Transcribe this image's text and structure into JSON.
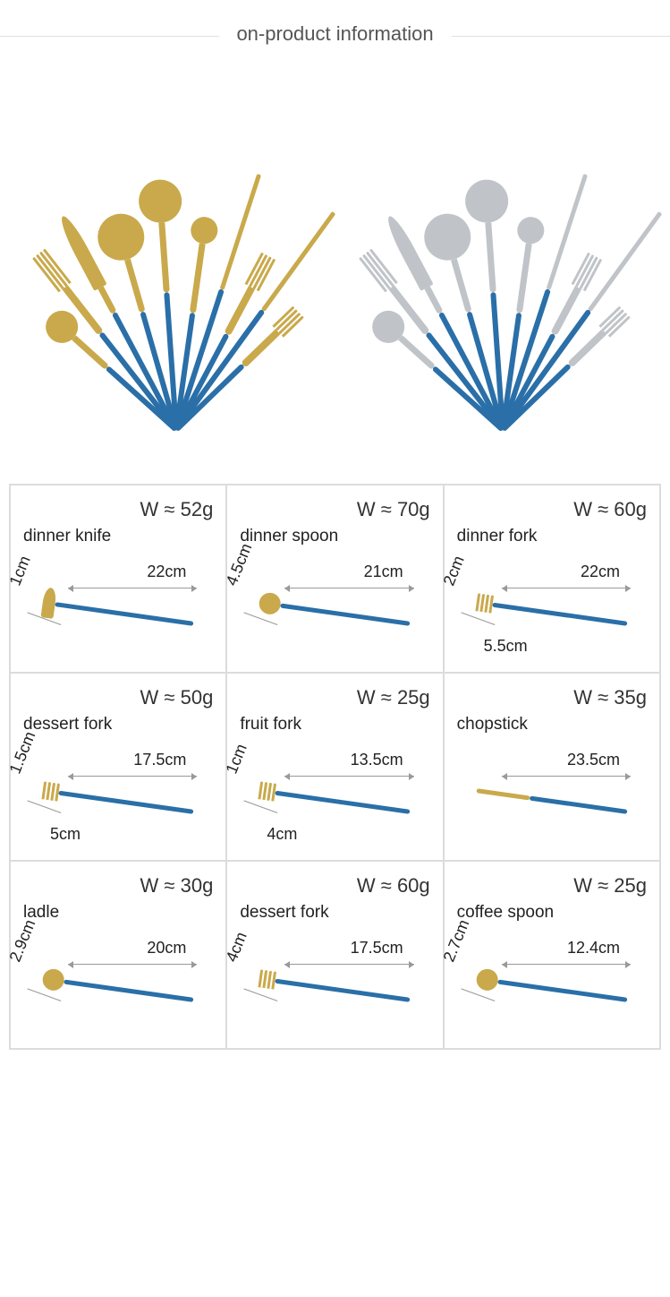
{
  "header": {
    "title": "on-product information"
  },
  "palette": {
    "handle": "#2a6fa8",
    "gold": "#c9a94b",
    "silver": "#c0c4c8",
    "border": "#dcdcdc",
    "text": "#333333"
  },
  "hero": {
    "sets": [
      {
        "head_color": "#c9a94b"
      },
      {
        "head_color": "#c0c4c8"
      }
    ],
    "fan_items": [
      {
        "type": "spoon",
        "angle": -48,
        "len": 190,
        "head_w": 36,
        "head_h": 36
      },
      {
        "type": "fork",
        "angle": -38,
        "len": 250,
        "head_w": 26,
        "head_h": 48
      },
      {
        "type": "knife",
        "angle": -28,
        "len": 270,
        "head_w": 16,
        "head_h": 90
      },
      {
        "type": "spoon",
        "angle": -16,
        "len": 250,
        "head_w": 52,
        "head_h": 52
      },
      {
        "type": "spoon",
        "angle": -4,
        "len": 280,
        "head_w": 48,
        "head_h": 48
      },
      {
        "type": "spoon",
        "angle": 8,
        "len": 240,
        "head_w": 30,
        "head_h": 30
      },
      {
        "type": "stick",
        "angle": 18,
        "len": 300,
        "head_w": 4,
        "head_h": 0
      },
      {
        "type": "fork",
        "angle": 28,
        "len": 220,
        "head_w": 22,
        "head_h": 40
      },
      {
        "type": "stick",
        "angle": 36,
        "len": 300,
        "head_w": 4,
        "head_h": 0
      },
      {
        "type": "fork",
        "angle": 46,
        "len": 190,
        "head_w": 18,
        "head_h": 32
      }
    ]
  },
  "specs": [
    {
      "name": "dinner knife",
      "weight": "W ≈ 52g",
      "length": "22cm",
      "width1": "1cm",
      "width2": null,
      "shape": "knife"
    },
    {
      "name": "dinner spoon",
      "weight": "W ≈ 70g",
      "length": "21cm",
      "width1": "4.5cm",
      "width2": null,
      "shape": "spoon"
    },
    {
      "name": "dinner fork",
      "weight": "W ≈ 60g",
      "length": "22cm",
      "width1": "2cm",
      "width2": "5.5cm",
      "shape": "fork"
    },
    {
      "name": "dessert fork",
      "weight": "W ≈ 50g",
      "length": "17.5cm",
      "width1": "1.5cm",
      "width2": "5cm",
      "shape": "fork"
    },
    {
      "name": "fruit fork",
      "weight": "W ≈ 25g",
      "length": "13.5cm",
      "width1": "1cm",
      "width2": "4cm",
      "shape": "fork"
    },
    {
      "name": "chopstick",
      "weight": "W ≈ 35g",
      "length": "23.5cm",
      "width1": null,
      "width2": null,
      "shape": "stick"
    },
    {
      "name": "ladle",
      "weight": "W ≈ 30g",
      "length": "20cm",
      "width1": "2.9cm",
      "width2": null,
      "shape": "spoon"
    },
    {
      "name": "dessert fork",
      "weight": "W ≈ 60g",
      "length": "17.5cm",
      "width1": "4cm",
      "width2": null,
      "shape": "fork"
    },
    {
      "name": "coffee spoon",
      "weight": "W ≈ 25g",
      "length": "12.4cm",
      "width1": "2.7cm",
      "width2": null,
      "shape": "spoon"
    }
  ]
}
